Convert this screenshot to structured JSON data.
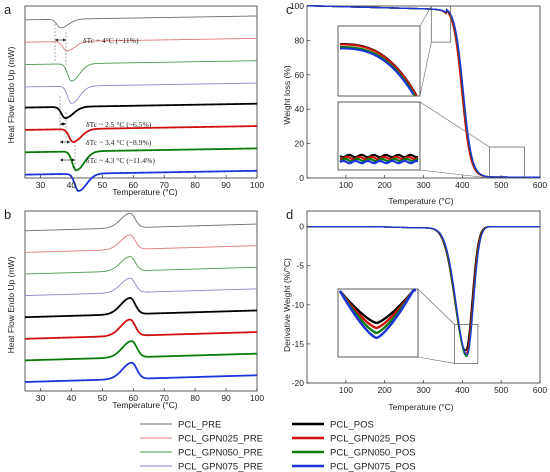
{
  "legend": {
    "items": [
      {
        "label": "PCL_PRE",
        "color": "#6e6e6e",
        "width": 1
      },
      {
        "label": "PCL_GPN025_PRE",
        "color": "#e07a7a",
        "width": 1
      },
      {
        "label": "PCL_GPN050_PRE",
        "color": "#4e9a4e",
        "width": 1
      },
      {
        "label": "PCL_GPN075_PRE",
        "color": "#8a86c8",
        "width": 1
      },
      {
        "label": "PCL_POS",
        "color": "#000000",
        "width": 3
      },
      {
        "label": "PCL_GPN025_POS",
        "color": "#d01010",
        "width": 3
      },
      {
        "label": "PCL_GPN050_POS",
        "color": "#0c7a0c",
        "width": 3
      },
      {
        "label": "PCL_GPN075_POS",
        "color": "#1c34d8",
        "width": 3
      }
    ]
  },
  "chart_data": [
    {
      "panel": "a",
      "type": "line",
      "xlabel": "Temperature (°C)",
      "ylabel": "Heat Flow Endo Up (mW)",
      "xlim": [
        25,
        100
      ],
      "xticks": [
        30,
        40,
        50,
        60,
        70,
        80,
        90,
        100
      ],
      "y_ticks_shown": false,
      "series": [
        {
          "name": "PCL_PRE",
          "min_x": 36.5,
          "baseline": 0.93,
          "depth": 0.05
        },
        {
          "name": "PCL_GPN025_PRE",
          "min_x": 38.5,
          "baseline": 0.8,
          "depth": 0.055
        },
        {
          "name": "PCL_GPN050_PRE",
          "min_x": 40.0,
          "baseline": 0.67,
          "depth": 0.1
        },
        {
          "name": "PCL_GPN075_PRE",
          "min_x": 40.0,
          "baseline": 0.54,
          "depth": 0.1
        },
        {
          "name": "PCL_POS",
          "min_x": 38.0,
          "baseline": 0.42,
          "depth": 0.065
        },
        {
          "name": "PCL_GPN025_POS",
          "min_x": 40.5,
          "baseline": 0.29,
          "depth": 0.075
        },
        {
          "name": "PCL_GPN050_POS",
          "min_x": 41.5,
          "baseline": 0.16,
          "depth": 0.11
        },
        {
          "name": "PCL_GPN075_POS",
          "min_x": 42.3,
          "baseline": 0.03,
          "depth": 0.1
        }
      ],
      "annotations": [
        {
          "text": "δTc ~ 4°C (~11%)"
        },
        {
          "text": "δTc ~ 2.5 °C (~6.5%)"
        },
        {
          "text": "δTc ~ 3.4 °C (~8.9%)"
        },
        {
          "text": "δTc ~ 4.3 °C (~11.4%)"
        }
      ]
    },
    {
      "panel": "b",
      "type": "line",
      "xlabel": "Temperature (°C)",
      "ylabel": "Heat Flow Endo Up (mW)",
      "xlim": [
        25,
        100
      ],
      "xticks": [
        30,
        40,
        50,
        60,
        70,
        80,
        90,
        100
      ],
      "y_ticks_shown": false,
      "series": [
        {
          "name": "PCL_PRE",
          "peak_x": 59,
          "baseline": 0.83,
          "height": 0.08
        },
        {
          "name": "PCL_GPN025_PRE",
          "peak_x": 59,
          "baseline": 0.71,
          "height": 0.08
        },
        {
          "name": "PCL_GPN050_PRE",
          "peak_x": 59,
          "baseline": 0.59,
          "height": 0.08
        },
        {
          "name": "PCL_GPN075_PRE",
          "peak_x": 59,
          "baseline": 0.47,
          "height": 0.08
        },
        {
          "name": "PCL_POS",
          "peak_x": 59,
          "baseline": 0.35,
          "height": 0.09
        },
        {
          "name": "PCL_GPN025_POS",
          "peak_x": 59,
          "baseline": 0.23,
          "height": 0.09
        },
        {
          "name": "PCL_GPN050_POS",
          "peak_x": 59.5,
          "baseline": 0.11,
          "height": 0.09
        },
        {
          "name": "PCL_GPN075_POS",
          "peak_x": 59.5,
          "baseline": -0.01,
          "height": 0.09
        }
      ]
    },
    {
      "panel": "c",
      "type": "line",
      "xlabel": "Temperature (°C)",
      "ylabel": "Weight loss (%)",
      "xlim": [
        0,
        600
      ],
      "ylim": [
        0,
        100
      ],
      "xticks": [
        100,
        200,
        300,
        400,
        500,
        600
      ],
      "yticks": [
        0,
        20,
        40,
        60,
        80,
        100
      ],
      "curve": {
        "plateau": 100,
        "onset": 360,
        "midpoint": 400,
        "end": 440,
        "residue": 0.5
      },
      "inset_zoom_regions": [
        {
          "x": [
            320,
            370
          ],
          "y": [
            79,
            100
          ]
        },
        {
          "x": [
            470,
            560
          ],
          "y": [
            0,
            18
          ]
        }
      ]
    },
    {
      "panel": "d",
      "type": "line",
      "xlabel": "Temperature (°C)",
      "ylabel": "Derivative Weight (%/°C)",
      "xlim": [
        0,
        600
      ],
      "ylim": [
        -20,
        2
      ],
      "xticks": [
        100,
        200,
        300,
        400,
        500,
        600
      ],
      "yticks": [
        0,
        -5,
        -10,
        -15,
        -20
      ],
      "curve": {
        "baseline": 0,
        "peak_x": 410,
        "peak_y_range": [
          -15.8,
          -16.6
        ]
      },
      "inset_zoom_regions": [
        {
          "x": [
            380,
            440
          ],
          "y": [
            -17.5,
            -12.5
          ]
        }
      ]
    }
  ]
}
